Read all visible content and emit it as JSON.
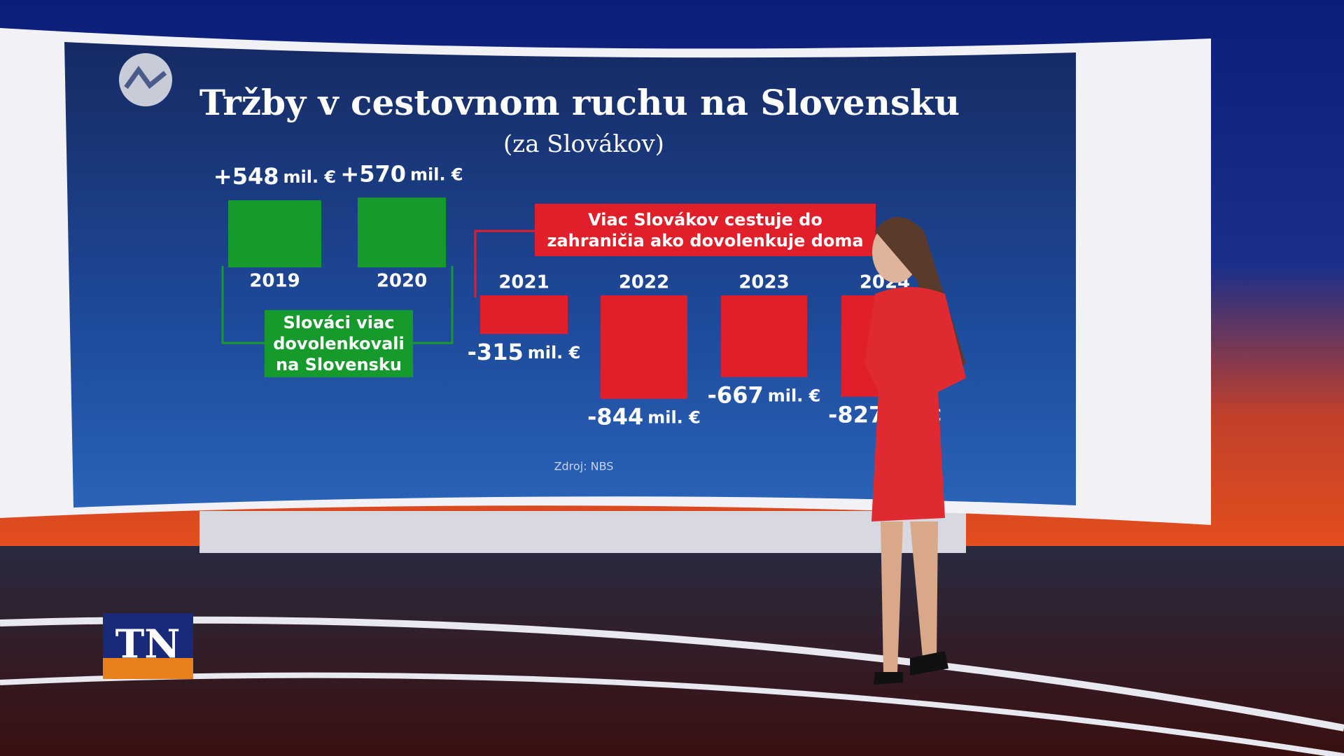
{
  "chart_data": {
    "type": "bar",
    "title": "Tržby v cestovnom ruchu na Slovensku",
    "subtitle": "(za Slovákov)",
    "categories": [
      "2019",
      "2020",
      "2021",
      "2022",
      "2023",
      "2024"
    ],
    "values": [
      548,
      570,
      -315,
      -844,
      -667,
      -827
    ],
    "value_labels": [
      "+548",
      "+570",
      "-315",
      "-844",
      "-667",
      "-827"
    ],
    "unit": "mil. €",
    "colors": [
      "#179a2c",
      "#179a2c",
      "#e01f2b",
      "#e01f2b",
      "#e01f2b",
      "#e01f2b"
    ],
    "annotations": [
      "Slováci viac dovolenkovali na Slovensku",
      "Viac Slovákov cestuje do zahraničia ako dovolenkuje doma"
    ],
    "source": "Zdroj: NBS",
    "channel_logo": "TN"
  }
}
